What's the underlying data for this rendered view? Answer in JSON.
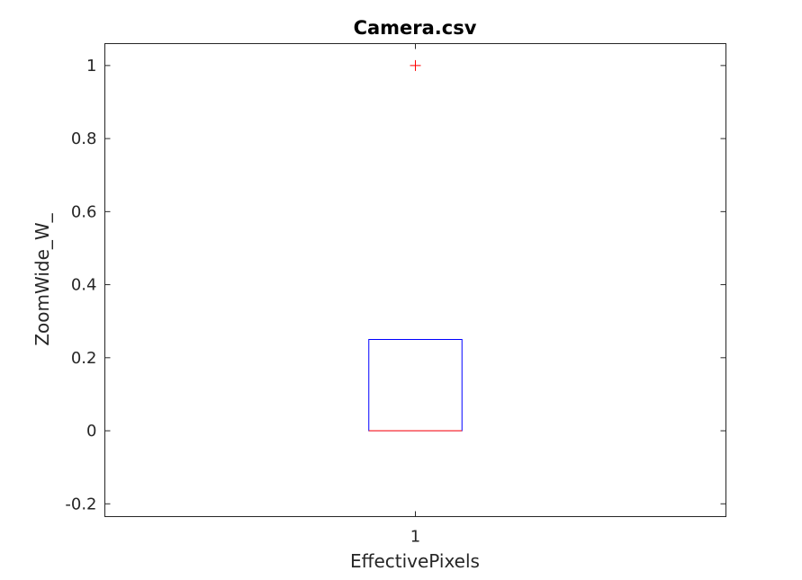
{
  "chart_data": {
    "type": "boxplot",
    "title": "Camera.csv",
    "xlabel": "EffectivePixels",
    "ylabel": "ZoomWide_W_",
    "categories": [
      "1"
    ],
    "ylim": [
      -0.235,
      1.06
    ],
    "yticks": [
      -0.2,
      0,
      0.2,
      0.4,
      0.6,
      0.8,
      1
    ],
    "ytick_labels": [
      "-0.2",
      "0",
      "0.2",
      "0.4",
      "0.6",
      "0.8",
      "1"
    ],
    "xtick_labels": [
      "1"
    ],
    "grid": false,
    "boxes": [
      {
        "category": "1",
        "q1": 0,
        "median": 0,
        "q3": 0.25,
        "whisker_low": 0,
        "whisker_high": 0.25,
        "outliers": [
          1
        ]
      }
    ],
    "colors": {
      "box": "#0000ff",
      "median": "#ff0000",
      "outlier": "#ff0000",
      "axes": "#262626"
    }
  }
}
